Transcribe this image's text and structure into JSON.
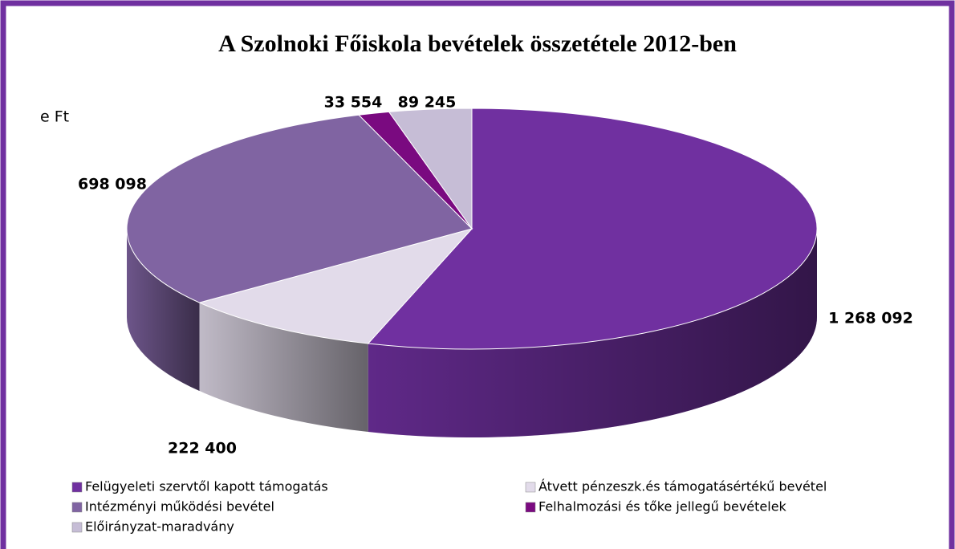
{
  "chart_data": {
    "type": "pie",
    "title": "A Szolnoki Főiskola bevételek összetétele 2012-ben",
    "subtitle": "e Ft",
    "categories": [
      "Felügyeleti szervtől kapott támogatás",
      "Átvett pénzeszk.és támogatásértékű bevétel",
      "Intézményi működési bevétel",
      "Felhalmozási és tőke jellegű bevételek",
      "Előirányzat-maradvány"
    ],
    "values": [
      1268092,
      222400,
      698098,
      33554,
      89245
    ],
    "value_labels": [
      "1 268 092",
      "222 400",
      "698 098",
      "33 554",
      "89 245"
    ],
    "colors": [
      "#7030a0",
      "#e2dbea",
      "#8064a2",
      "#7a0a80",
      "#c6bdd6"
    ],
    "legend": "bottom"
  }
}
